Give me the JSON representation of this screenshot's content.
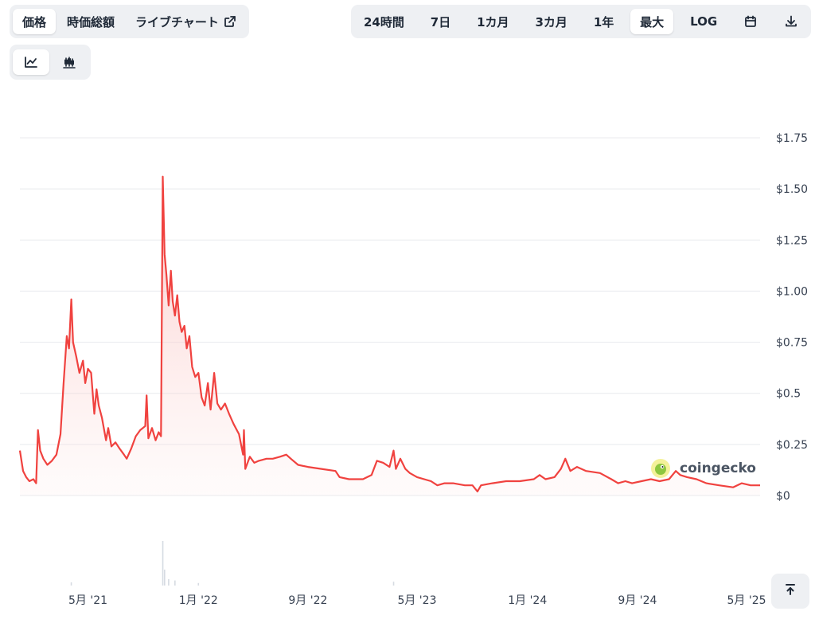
{
  "metric_tabs": [
    {
      "label": "価格",
      "active": true
    },
    {
      "label": "時価総額",
      "active": false
    },
    {
      "label": "ライブチャート",
      "active": false,
      "icon": "external-link-icon"
    }
  ],
  "chart_type_buttons": [
    {
      "icon": "line-chart-icon",
      "active": true
    },
    {
      "icon": "candlestick-chart-icon",
      "active": false
    }
  ],
  "range_tabs": [
    {
      "label": "24時間",
      "active": false
    },
    {
      "label": "7日",
      "active": false
    },
    {
      "label": "1カ月",
      "active": false
    },
    {
      "label": "3カ月",
      "active": false
    },
    {
      "label": "1年",
      "active": false
    },
    {
      "label": "最大",
      "active": true
    },
    {
      "label": "LOG",
      "active": false
    }
  ],
  "toolbar_icons": [
    "calendar-icon",
    "download-icon"
  ],
  "watermark": {
    "text": "coingecko"
  },
  "scroll_top_icon": "arrow-up-to-top-icon",
  "colors": {
    "line": "#f0423f",
    "area_top": "#f8b4b2",
    "grid": "#e8eaee",
    "active_bg": "#ffffff",
    "segment_bg": "#eef0f3"
  },
  "chart_data": {
    "type": "area",
    "x_ticks": [
      "5月 '21",
      "1月 '22",
      "9月 '22",
      "5月 '23",
      "1月 '24",
      "9月 '24",
      "5月 '25"
    ],
    "y_ticks": [
      "$0",
      "$0.25",
      "$0.5",
      "$0.75",
      "$1.00",
      "$1.25",
      "$1.50",
      "$1.75"
    ],
    "y_tick_values": [
      0,
      0.25,
      0.5,
      0.75,
      1.0,
      1.25,
      1.5,
      1.75
    ],
    "ylim": [
      0,
      1.75
    ],
    "xlim": [
      "2020-12-01",
      "2025-05-31"
    ],
    "grid": true,
    "series": [
      {
        "points": [
          [
            "2020-12-01",
            0.22
          ],
          [
            "2020-12-08",
            0.12
          ],
          [
            "2020-12-15",
            0.09
          ],
          [
            "2020-12-22",
            0.07
          ],
          [
            "2020-12-31",
            0.08
          ],
          [
            "2021-01-06",
            0.06
          ],
          [
            "2021-01-10",
            0.32
          ],
          [
            "2021-01-15",
            0.22
          ],
          [
            "2021-01-22",
            0.18
          ],
          [
            "2021-01-31",
            0.15
          ],
          [
            "2021-02-10",
            0.17
          ],
          [
            "2021-02-20",
            0.2
          ],
          [
            "2021-03-01",
            0.3
          ],
          [
            "2021-03-08",
            0.55
          ],
          [
            "2021-03-15",
            0.78
          ],
          [
            "2021-03-20",
            0.72
          ],
          [
            "2021-03-25",
            0.96
          ],
          [
            "2021-03-29",
            0.75
          ],
          [
            "2021-04-05",
            0.68
          ],
          [
            "2021-04-12",
            0.6
          ],
          [
            "2021-04-20",
            0.66
          ],
          [
            "2021-04-25",
            0.55
          ],
          [
            "2021-05-01",
            0.62
          ],
          [
            "2021-05-08",
            0.6
          ],
          [
            "2021-05-15",
            0.4
          ],
          [
            "2021-05-20",
            0.52
          ],
          [
            "2021-05-25",
            0.44
          ],
          [
            "2021-06-01",
            0.38
          ],
          [
            "2021-06-10",
            0.27
          ],
          [
            "2021-06-15",
            0.33
          ],
          [
            "2021-06-22",
            0.24
          ],
          [
            "2021-07-01",
            0.26
          ],
          [
            "2021-07-10",
            0.23
          ],
          [
            "2021-07-20",
            0.2
          ],
          [
            "2021-07-26",
            0.18
          ],
          [
            "2021-08-05",
            0.23
          ],
          [
            "2021-08-15",
            0.29
          ],
          [
            "2021-08-25",
            0.32
          ],
          [
            "2021-09-05",
            0.34
          ],
          [
            "2021-09-08",
            0.49
          ],
          [
            "2021-09-12",
            0.28
          ],
          [
            "2021-09-20",
            0.33
          ],
          [
            "2021-09-28",
            0.27
          ],
          [
            "2021-10-05",
            0.31
          ],
          [
            "2021-10-10",
            0.29
          ],
          [
            "2021-10-14",
            1.56
          ],
          [
            "2021-10-18",
            1.18
          ],
          [
            "2021-10-22",
            1.08
          ],
          [
            "2021-10-27",
            0.93
          ],
          [
            "2021-11-01",
            1.1
          ],
          [
            "2021-11-05",
            0.95
          ],
          [
            "2021-11-10",
            0.88
          ],
          [
            "2021-11-15",
            0.98
          ],
          [
            "2021-11-20",
            0.85
          ],
          [
            "2021-11-25",
            0.8
          ],
          [
            "2021-12-01",
            0.83
          ],
          [
            "2021-12-06",
            0.72
          ],
          [
            "2021-12-12",
            0.78
          ],
          [
            "2021-12-18",
            0.63
          ],
          [
            "2021-12-25",
            0.58
          ],
          [
            "2022-01-01",
            0.6
          ],
          [
            "2022-01-08",
            0.48
          ],
          [
            "2022-01-15",
            0.44
          ],
          [
            "2022-01-22",
            0.55
          ],
          [
            "2022-01-28",
            0.42
          ],
          [
            "2022-02-05",
            0.6
          ],
          [
            "2022-02-12",
            0.45
          ],
          [
            "2022-02-20",
            0.42
          ],
          [
            "2022-03-01",
            0.45
          ],
          [
            "2022-03-10",
            0.4
          ],
          [
            "2022-03-20",
            0.35
          ],
          [
            "2022-04-01",
            0.3
          ],
          [
            "2022-04-10",
            0.2
          ],
          [
            "2022-04-12",
            0.32
          ],
          [
            "2022-04-15",
            0.13
          ],
          [
            "2022-04-25",
            0.19
          ],
          [
            "2022-05-05",
            0.16
          ],
          [
            "2022-05-15",
            0.17
          ],
          [
            "2022-06-01",
            0.18
          ],
          [
            "2022-06-15",
            0.18
          ],
          [
            "2022-07-01",
            0.19
          ],
          [
            "2022-07-15",
            0.2
          ],
          [
            "2022-07-25",
            0.18
          ],
          [
            "2022-08-10",
            0.15
          ],
          [
            "2022-09-01",
            0.14
          ],
          [
            "2022-10-01",
            0.13
          ],
          [
            "2022-11-01",
            0.12
          ],
          [
            "2022-11-10",
            0.09
          ],
          [
            "2022-12-01",
            0.08
          ],
          [
            "2023-01-01",
            0.08
          ],
          [
            "2023-01-20",
            0.1
          ],
          [
            "2023-02-01",
            0.17
          ],
          [
            "2023-02-15",
            0.16
          ],
          [
            "2023-03-01",
            0.14
          ],
          [
            "2023-03-10",
            0.22
          ],
          [
            "2023-03-15",
            0.13
          ],
          [
            "2023-03-25",
            0.18
          ],
          [
            "2023-04-05",
            0.13
          ],
          [
            "2023-04-15",
            0.11
          ],
          [
            "2023-05-01",
            0.09
          ],
          [
            "2023-06-01",
            0.07
          ],
          [
            "2023-06-15",
            0.05
          ],
          [
            "2023-07-01",
            0.06
          ],
          [
            "2023-07-20",
            0.06
          ],
          [
            "2023-08-15",
            0.05
          ],
          [
            "2023-09-01",
            0.05
          ],
          [
            "2023-09-12",
            0.02
          ],
          [
            "2023-09-20",
            0.05
          ],
          [
            "2023-10-15",
            0.06
          ],
          [
            "2023-11-15",
            0.07
          ],
          [
            "2023-12-15",
            0.07
          ],
          [
            "2024-01-15",
            0.08
          ],
          [
            "2024-01-28",
            0.1
          ],
          [
            "2024-02-10",
            0.08
          ],
          [
            "2024-03-01",
            0.09
          ],
          [
            "2024-03-15",
            0.13
          ],
          [
            "2024-03-25",
            0.18
          ],
          [
            "2024-04-05",
            0.12
          ],
          [
            "2024-04-20",
            0.14
          ],
          [
            "2024-05-10",
            0.12
          ],
          [
            "2024-06-10",
            0.11
          ],
          [
            "2024-07-05",
            0.08
          ],
          [
            "2024-07-20",
            0.06
          ],
          [
            "2024-08-05",
            0.07
          ],
          [
            "2024-08-20",
            0.06
          ],
          [
            "2024-09-10",
            0.07
          ],
          [
            "2024-10-01",
            0.08
          ],
          [
            "2024-10-20",
            0.07
          ],
          [
            "2024-11-10",
            0.08
          ],
          [
            "2024-11-25",
            0.12
          ],
          [
            "2024-12-05",
            0.1
          ],
          [
            "2024-12-20",
            0.09
          ],
          [
            "2025-01-10",
            0.08
          ],
          [
            "2025-02-01",
            0.06
          ],
          [
            "2025-03-01",
            0.05
          ],
          [
            "2025-04-01",
            0.04
          ],
          [
            "2025-04-20",
            0.06
          ],
          [
            "2025-05-10",
            0.05
          ],
          [
            "2025-05-31",
            0.05
          ]
        ]
      }
    ],
    "volume": [
      [
        "2021-03-25",
        0.05
      ],
      [
        "2021-10-14",
        0.7
      ],
      [
        "2021-10-18",
        0.25
      ],
      [
        "2021-10-27",
        0.1
      ],
      [
        "2021-11-10",
        0.08
      ],
      [
        "2022-01-01",
        0.04
      ],
      [
        "2023-03-10",
        0.06
      ]
    ]
  }
}
